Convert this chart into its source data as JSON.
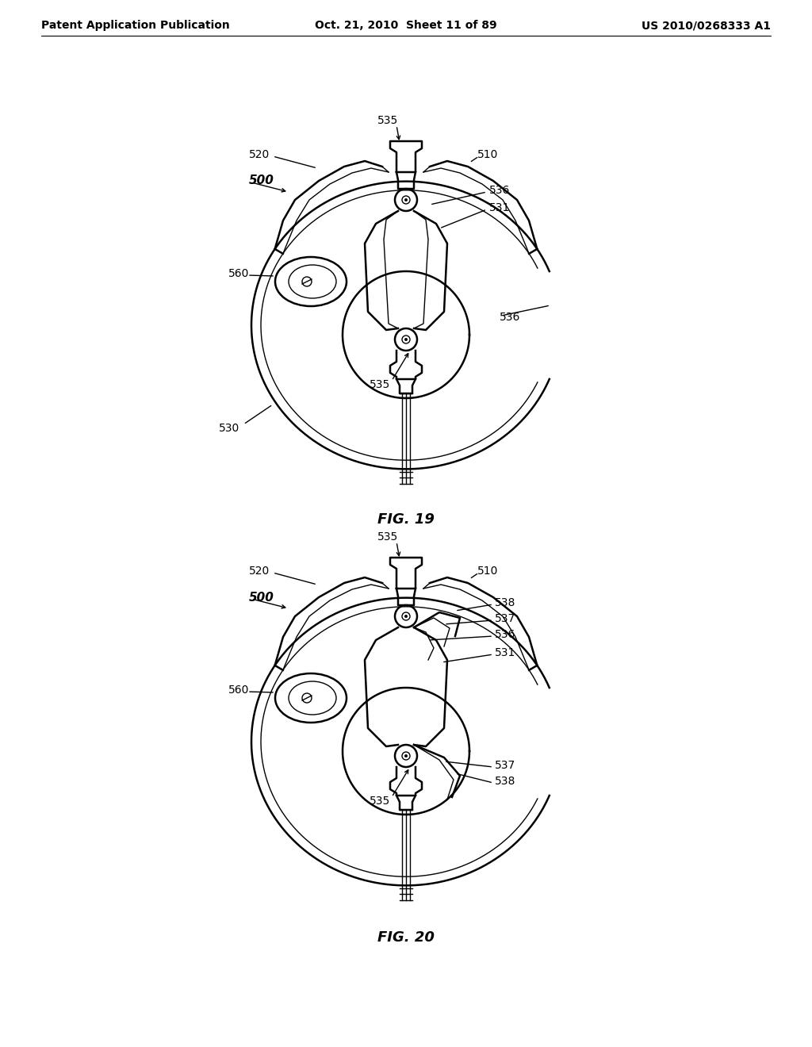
{
  "bg_color": "#ffffff",
  "line_color": "#000000",
  "header_left": "Patent Application Publication",
  "header_mid": "Oct. 21, 2010  Sheet 11 of 89",
  "header_right": "US 2010/0268333 A1",
  "fig19_label": "FIG. 19",
  "fig20_label": "FIG. 20",
  "lw_main": 1.8,
  "lw_thin": 1.0,
  "lw_thick": 2.2
}
